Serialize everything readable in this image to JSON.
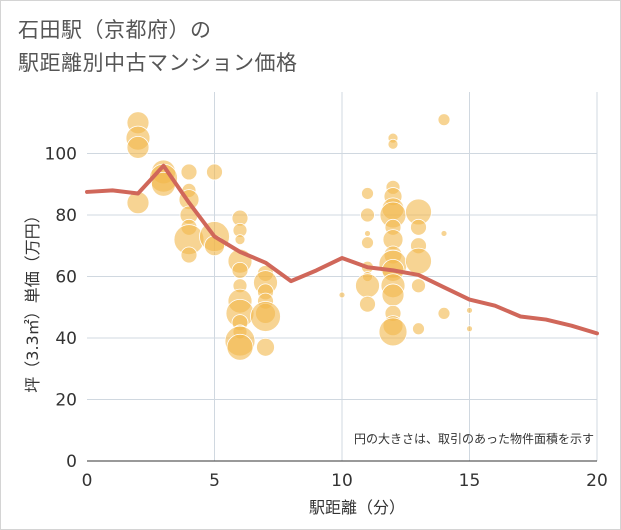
{
  "title_line1": "石田駅（京都府）の",
  "title_line2": "駅距離別中古マンション価格",
  "chart_data": {
    "type": "scatter",
    "xlabel": "駅距離（分）",
    "ylabel": "坪（3.3㎡）単価（万円）",
    "note": "円の大きさは、取引のあった物件面積を示す",
    "xlim": [
      0,
      20
    ],
    "ylim": [
      0,
      120
    ],
    "x_ticks": [
      "0",
      "5",
      "10",
      "15",
      "20"
    ],
    "y_ticks": [
      "0",
      "20",
      "40",
      "60",
      "80",
      "100"
    ],
    "colors": {
      "bubble": "#f2b84b",
      "line": "#d0675a",
      "grid": "#d0d8e0"
    },
    "bubbles": [
      {
        "x": 2,
        "y": 110,
        "s": 11
      },
      {
        "x": 2,
        "y": 105,
        "s": 12
      },
      {
        "x": 2,
        "y": 102,
        "s": 11
      },
      {
        "x": 2,
        "y": 84,
        "s": 11
      },
      {
        "x": 3,
        "y": 94,
        "s": 12
      },
      {
        "x": 3,
        "y": 92,
        "s": 14
      },
      {
        "x": 3,
        "y": 90,
        "s": 12
      },
      {
        "x": 4,
        "y": 94,
        "s": 8
      },
      {
        "x": 4,
        "y": 88,
        "s": 7
      },
      {
        "x": 4,
        "y": 85,
        "s": 10
      },
      {
        "x": 4,
        "y": 80,
        "s": 9
      },
      {
        "x": 4,
        "y": 76,
        "s": 8
      },
      {
        "x": 4,
        "y": 72,
        "s": 15
      },
      {
        "x": 4,
        "y": 67,
        "s": 8
      },
      {
        "x": 5,
        "y": 94,
        "s": 8
      },
      {
        "x": 5,
        "y": 73,
        "s": 15
      },
      {
        "x": 5,
        "y": 70,
        "s": 10
      },
      {
        "x": 6,
        "y": 79,
        "s": 8
      },
      {
        "x": 6,
        "y": 75,
        "s": 7
      },
      {
        "x": 6,
        "y": 72,
        "s": 5
      },
      {
        "x": 6,
        "y": 65,
        "s": 12
      },
      {
        "x": 6,
        "y": 62,
        "s": 8
      },
      {
        "x": 6,
        "y": 57,
        "s": 7
      },
      {
        "x": 6,
        "y": 52,
        "s": 12
      },
      {
        "x": 6,
        "y": 48,
        "s": 14
      },
      {
        "x": 6,
        "y": 45,
        "s": 8
      },
      {
        "x": 6,
        "y": 42,
        "s": 7
      },
      {
        "x": 6,
        "y": 39,
        "s": 15
      },
      {
        "x": 6,
        "y": 37,
        "s": 13
      },
      {
        "x": 7,
        "y": 61,
        "s": 8
      },
      {
        "x": 7,
        "y": 58,
        "s": 12
      },
      {
        "x": 7,
        "y": 55,
        "s": 8
      },
      {
        "x": 7,
        "y": 52,
        "s": 8
      },
      {
        "x": 7,
        "y": 48,
        "s": 10
      },
      {
        "x": 7,
        "y": 47,
        "s": 15
      },
      {
        "x": 7,
        "y": 37,
        "s": 9
      },
      {
        "x": 10,
        "y": 54,
        "s": 3
      },
      {
        "x": 11,
        "y": 87,
        "s": 6
      },
      {
        "x": 11,
        "y": 80,
        "s": 7
      },
      {
        "x": 11,
        "y": 74,
        "s": 3
      },
      {
        "x": 11,
        "y": 71,
        "s": 6
      },
      {
        "x": 11,
        "y": 63,
        "s": 6
      },
      {
        "x": 11,
        "y": 60,
        "s": 5
      },
      {
        "x": 11,
        "y": 57,
        "s": 12
      },
      {
        "x": 11,
        "y": 51,
        "s": 8
      },
      {
        "x": 12,
        "y": 105,
        "s": 5
      },
      {
        "x": 12,
        "y": 103,
        "s": 5
      },
      {
        "x": 12,
        "y": 89,
        "s": 7
      },
      {
        "x": 12,
        "y": 86,
        "s": 9
      },
      {
        "x": 12,
        "y": 82,
        "s": 11
      },
      {
        "x": 12,
        "y": 80,
        "s": 13
      },
      {
        "x": 12,
        "y": 76,
        "s": 8
      },
      {
        "x": 12,
        "y": 72,
        "s": 10
      },
      {
        "x": 12,
        "y": 67,
        "s": 9
      },
      {
        "x": 12,
        "y": 64,
        "s": 14
      },
      {
        "x": 12,
        "y": 62,
        "s": 11
      },
      {
        "x": 12,
        "y": 57,
        "s": 12
      },
      {
        "x": 12,
        "y": 54,
        "s": 11
      },
      {
        "x": 12,
        "y": 48,
        "s": 8
      },
      {
        "x": 12,
        "y": 44,
        "s": 10
      },
      {
        "x": 12,
        "y": 42,
        "s": 14
      },
      {
        "x": 13,
        "y": 81,
        "s": 13
      },
      {
        "x": 13,
        "y": 76,
        "s": 8
      },
      {
        "x": 13,
        "y": 70,
        "s": 8
      },
      {
        "x": 13,
        "y": 65,
        "s": 13
      },
      {
        "x": 13,
        "y": 57,
        "s": 7
      },
      {
        "x": 13,
        "y": 43,
        "s": 6
      },
      {
        "x": 14,
        "y": 111,
        "s": 6
      },
      {
        "x": 14,
        "y": 74,
        "s": 3
      },
      {
        "x": 14,
        "y": 48,
        "s": 6
      },
      {
        "x": 15,
        "y": 49,
        "s": 3
      },
      {
        "x": 15,
        "y": 43,
        "s": 3
      }
    ],
    "line": {
      "x": [
        0,
        1,
        2,
        3,
        4,
        5,
        6,
        7,
        8,
        9,
        10,
        11,
        12,
        13,
        14,
        15,
        16,
        17,
        18,
        19,
        20
      ],
      "y": [
        87.5,
        88,
        87,
        96,
        84,
        73,
        68,
        64.5,
        58.5,
        62,
        66,
        63,
        62,
        60.5,
        56.5,
        52.5,
        50.5,
        47,
        46,
        44,
        41.5
      ]
    }
  }
}
